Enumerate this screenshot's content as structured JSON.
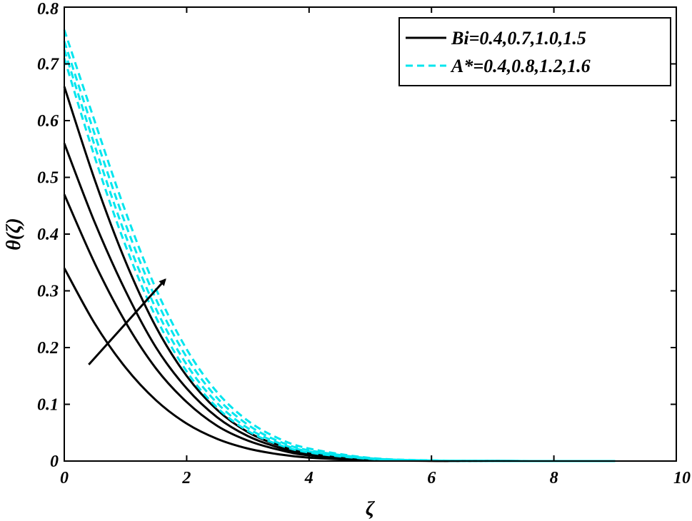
{
  "chart_data": {
    "type": "line",
    "xlabel": "ζ",
    "ylabel": "θ(ζ)",
    "xlim": [
      0,
      10
    ],
    "ylim": [
      0,
      0.8
    ],
    "xticks": [
      "0",
      "2",
      "4",
      "6",
      "8",
      "10"
    ],
    "yticks": [
      "0",
      "0.1",
      "0.2",
      "0.3",
      "0.4",
      "0.5",
      "0.6",
      "0.7",
      "0.8"
    ],
    "grid": false,
    "legend": {
      "position": "top-right",
      "entries": [
        {
          "label": "Bi=0.4,0.7,1.0,1.5",
          "color": "#000000",
          "style": "solid"
        },
        {
          "label": "A*=0.4,0.8,1.2,1.6",
          "color": "#00e5ee",
          "style": "dashed"
        }
      ]
    },
    "series": [
      {
        "group": "Bi",
        "color": "#000000",
        "style": "solid",
        "x": [
          0,
          0.5,
          1,
          1.5,
          2,
          2.5,
          3,
          3.5,
          4,
          5,
          6,
          7,
          8,
          9
        ],
        "y": [
          0.34,
          0.242,
          0.165,
          0.107,
          0.066,
          0.039,
          0.022,
          0.012,
          0.006,
          0.0015,
          0.0003,
          0.0001,
          0,
          0
        ]
      },
      {
        "group": "Bi",
        "color": "#000000",
        "style": "solid",
        "x": [
          0,
          0.5,
          1,
          1.5,
          2,
          2.5,
          3,
          3.5,
          4,
          5,
          6,
          7,
          8,
          9
        ],
        "y": [
          0.47,
          0.348,
          0.245,
          0.163,
          0.104,
          0.062,
          0.036,
          0.02,
          0.01,
          0.0025,
          0.0005,
          0.0001,
          0,
          0
        ]
      },
      {
        "group": "Bi",
        "color": "#000000",
        "style": "solid",
        "x": [
          0,
          0.5,
          1,
          1.5,
          2,
          2.5,
          3,
          3.5,
          4,
          5,
          6,
          7,
          8,
          9
        ],
        "y": [
          0.56,
          0.42,
          0.3,
          0.2,
          0.128,
          0.077,
          0.044,
          0.024,
          0.012,
          0.003,
          0.0006,
          0.0001,
          0,
          0
        ]
      },
      {
        "group": "Bi",
        "color": "#000000",
        "style": "solid",
        "x": [
          0,
          0.5,
          1,
          1.5,
          2,
          2.5,
          3,
          3.5,
          4,
          5,
          6,
          7,
          8,
          9
        ],
        "y": [
          0.66,
          0.495,
          0.352,
          0.236,
          0.15,
          0.09,
          0.051,
          0.028,
          0.014,
          0.0035,
          0.0007,
          0.0001,
          0,
          0
        ]
      },
      {
        "group": "A*",
        "color": "#00e5ee",
        "style": "dashed",
        "x": [
          0,
          0.5,
          1,
          1.5,
          2,
          2.5,
          3,
          3.5,
          4,
          5,
          6,
          7,
          8,
          9
        ],
        "y": [
          0.71,
          0.535,
          0.38,
          0.253,
          0.158,
          0.094,
          0.053,
          0.029,
          0.015,
          0.0037,
          0.0008,
          0.0002,
          0,
          0
        ]
      },
      {
        "group": "A*",
        "color": "#00e5ee",
        "style": "dashed",
        "x": [
          0,
          0.5,
          1,
          1.5,
          2,
          2.5,
          3,
          3.5,
          4,
          5,
          6,
          7,
          8,
          9
        ],
        "y": [
          0.725,
          0.555,
          0.398,
          0.268,
          0.17,
          0.102,
          0.058,
          0.032,
          0.017,
          0.0042,
          0.0009,
          0.0002,
          0,
          0
        ]
      },
      {
        "group": "A*",
        "color": "#00e5ee",
        "style": "dashed",
        "x": [
          0,
          0.5,
          1,
          1.5,
          2,
          2.5,
          3,
          3.5,
          4,
          5,
          6,
          7,
          8,
          9
        ],
        "y": [
          0.74,
          0.575,
          0.418,
          0.285,
          0.183,
          0.111,
          0.064,
          0.035,
          0.019,
          0.0048,
          0.001,
          0.0002,
          0,
          0
        ]
      },
      {
        "group": "A*",
        "color": "#00e5ee",
        "style": "dashed",
        "x": [
          0,
          0.5,
          1,
          1.5,
          2,
          2.5,
          3,
          3.5,
          4,
          5,
          6,
          7,
          8,
          9
        ],
        "y": [
          0.76,
          0.598,
          0.44,
          0.303,
          0.197,
          0.121,
          0.071,
          0.04,
          0.022,
          0.0055,
          0.0012,
          0.0003,
          0,
          0
        ]
      }
    ],
    "annotation": {
      "type": "arrow",
      "from": [
        0.4,
        0.17
      ],
      "to": [
        1.65,
        0.32
      ],
      "direction": "increasing"
    }
  }
}
